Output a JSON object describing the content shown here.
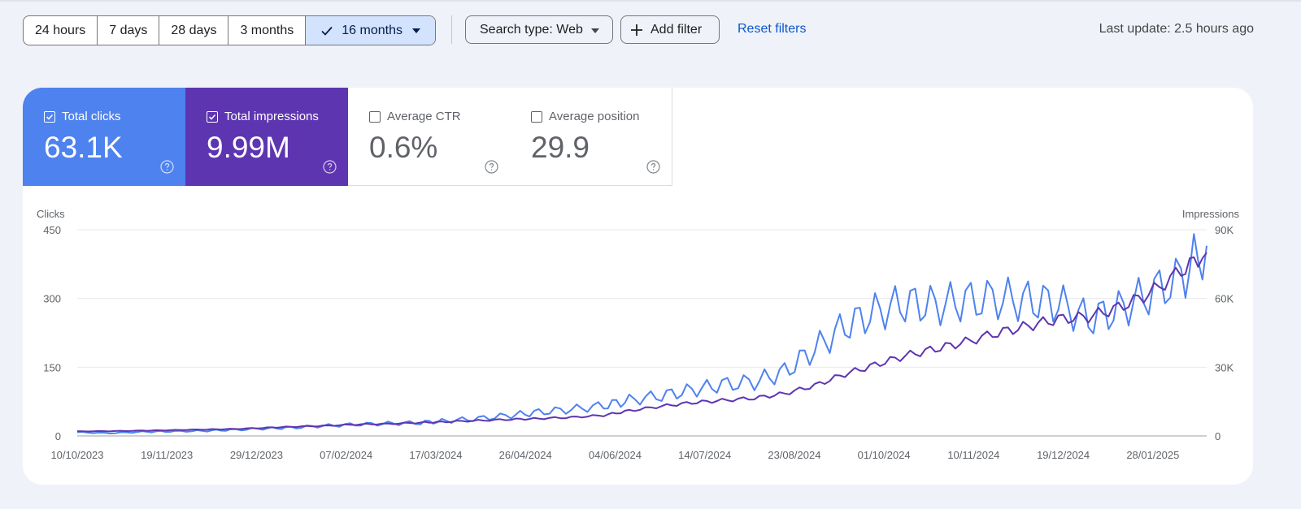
{
  "filters": {
    "ranges": [
      {
        "label": "24 hours",
        "active": false
      },
      {
        "label": "7 days",
        "active": false
      },
      {
        "label": "28 days",
        "active": false
      },
      {
        "label": "3 months",
        "active": false
      },
      {
        "label": "16 months",
        "active": true
      }
    ],
    "search_type_label": "Search type: Web",
    "add_filter_label": "Add filter",
    "reset_label": "Reset filters",
    "last_update": "Last update: 2.5 hours ago"
  },
  "metrics": {
    "clicks": {
      "label": "Total clicks",
      "value": "63.1K",
      "checked": true
    },
    "impressions": {
      "label": "Total impressions",
      "value": "9.99M",
      "checked": true
    },
    "ctr": {
      "label": "Average CTR",
      "value": "0.6%",
      "checked": false
    },
    "position": {
      "label": "Average position",
      "value": "29.9",
      "checked": false
    }
  },
  "colors": {
    "clicks": "#4e82ee",
    "impressions": "#5e35b1",
    "accent_link": "#0b57d0"
  },
  "icons": [
    "check-icon",
    "dropdown-arrow-icon",
    "plus-icon",
    "checkbox-icon",
    "help-icon"
  ],
  "chart_data": {
    "type": "line",
    "y_left_label": "Clicks",
    "y_right_label": "Impressions",
    "y_left_ticks": [
      "0",
      "150",
      "300",
      "450"
    ],
    "y_right_ticks": [
      "0",
      "30K",
      "60K",
      "90K"
    ],
    "ylim_left": [
      0,
      450
    ],
    "ylim_right": [
      0,
      90000
    ],
    "x_ticks": [
      "10/10/2023",
      "19/11/2023",
      "29/12/2023",
      "07/02/2024",
      "17/03/2024",
      "26/04/2024",
      "04/06/2024",
      "14/07/2024",
      "23/08/2024",
      "01/10/2024",
      "10/11/2024",
      "19/12/2024",
      "28/01/2025"
    ],
    "x_start": "2023-10-10",
    "x_end": "2025-02-08",
    "grid": true,
    "series": [
      {
        "name": "Clicks",
        "axis": "left",
        "points": [
          [
            "2023-10-10",
            8
          ],
          [
            "2023-10-24",
            6
          ],
          [
            "2023-11-07",
            9
          ],
          [
            "2023-11-19",
            10
          ],
          [
            "2023-12-03",
            11
          ],
          [
            "2023-12-15",
            13
          ],
          [
            "2023-12-29",
            16
          ],
          [
            "2024-01-10",
            18
          ],
          [
            "2024-01-24",
            22
          ],
          [
            "2024-02-07",
            25
          ],
          [
            "2024-02-21",
            27
          ],
          [
            "2024-03-06",
            29
          ],
          [
            "2024-03-17",
            33
          ],
          [
            "2024-03-31",
            38
          ],
          [
            "2024-04-14",
            45
          ],
          [
            "2024-04-26",
            52
          ],
          [
            "2024-05-10",
            58
          ],
          [
            "2024-05-24",
            66
          ],
          [
            "2024-06-04",
            78
          ],
          [
            "2024-06-18",
            88
          ],
          [
            "2024-07-01",
            100
          ],
          [
            "2024-07-14",
            112
          ],
          [
            "2024-07-28",
            118
          ],
          [
            "2024-08-10",
            140
          ],
          [
            "2024-08-23",
            190
          ],
          [
            "2024-09-05",
            240
          ],
          [
            "2024-09-18",
            270
          ],
          [
            "2024-10-01",
            290
          ],
          [
            "2024-10-14",
            285
          ],
          [
            "2024-10-27",
            295
          ],
          [
            "2024-11-10",
            300
          ],
          [
            "2024-11-23",
            295
          ],
          [
            "2024-12-06",
            290
          ],
          [
            "2024-12-19",
            255
          ],
          [
            "2025-01-01",
            275
          ],
          [
            "2025-01-14",
            310
          ],
          [
            "2025-01-28",
            345
          ],
          [
            "2025-02-08",
            415
          ]
        ]
      },
      {
        "name": "Impressions",
        "axis": "right",
        "points": [
          [
            "2023-10-10",
            2000
          ],
          [
            "2023-10-24",
            2100
          ],
          [
            "2023-11-07",
            2300
          ],
          [
            "2023-11-19",
            2500
          ],
          [
            "2023-12-03",
            2800
          ],
          [
            "2023-12-15",
            3000
          ],
          [
            "2023-12-29",
            3500
          ],
          [
            "2024-01-10",
            4000
          ],
          [
            "2024-01-24",
            4400
          ],
          [
            "2024-02-07",
            5000
          ],
          [
            "2024-02-21",
            5300
          ],
          [
            "2024-03-06",
            5800
          ],
          [
            "2024-03-17",
            6200
          ],
          [
            "2024-03-31",
            6700
          ],
          [
            "2024-04-14",
            7200
          ],
          [
            "2024-04-26",
            7600
          ],
          [
            "2024-05-10",
            8100
          ],
          [
            "2024-05-24",
            9000
          ],
          [
            "2024-06-04",
            11000
          ],
          [
            "2024-06-18",
            13000
          ],
          [
            "2024-07-01",
            14500
          ],
          [
            "2024-07-14",
            15500
          ],
          [
            "2024-07-28",
            16500
          ],
          [
            "2024-08-10",
            18500
          ],
          [
            "2024-08-23",
            22000
          ],
          [
            "2024-09-05",
            27000
          ],
          [
            "2024-09-18",
            31000
          ],
          [
            "2024-10-01",
            35000
          ],
          [
            "2024-10-14",
            38000
          ],
          [
            "2024-10-27",
            41000
          ],
          [
            "2024-11-10",
            45000
          ],
          [
            "2024-11-23",
            48000
          ],
          [
            "2024-12-06",
            51000
          ],
          [
            "2024-12-19",
            52000
          ],
          [
            "2025-01-01",
            56000
          ],
          [
            "2025-01-14",
            62000
          ],
          [
            "2025-01-28",
            72000
          ],
          [
            "2025-02-08",
            80000
          ]
        ]
      }
    ]
  }
}
